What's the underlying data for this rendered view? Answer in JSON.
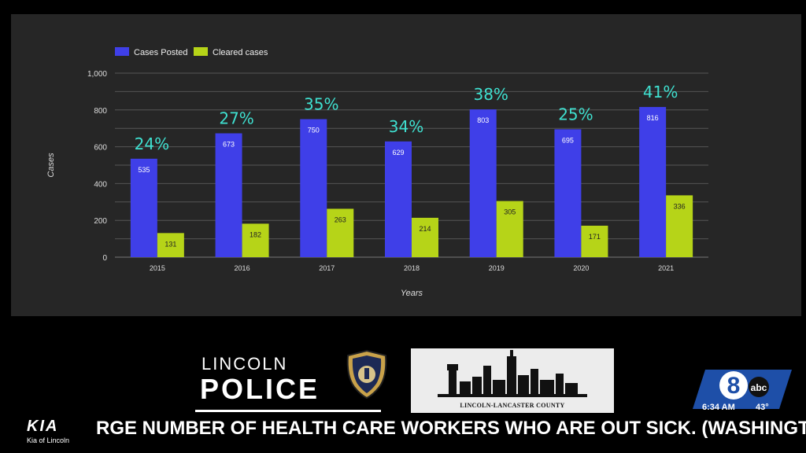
{
  "chart_data": {
    "type": "bar",
    "categories": [
      "2015",
      "2016",
      "2017",
      "2018",
      "2019",
      "2020",
      "2021"
    ],
    "series": [
      {
        "name": "Cases Posted",
        "color": "#3f3fe8",
        "values": [
          535,
          673,
          750,
          629,
          803,
          695,
          816
        ]
      },
      {
        "name": "Cleared cases",
        "color": "#b6d418",
        "values": [
          131,
          182,
          263,
          214,
          305,
          171,
          336
        ]
      }
    ],
    "percent_labels": [
      "24%",
      "27%",
      "35%",
      "34%",
      "38%",
      "25%",
      "41%"
    ],
    "percent_color": "#3fe0d0",
    "y_ticks": [
      "0",
      "200",
      "400",
      "600",
      "800",
      "1,000"
    ],
    "xlabel": "Years",
    "ylabel": "Cases",
    "ylim": [
      0,
      1000
    ],
    "grid": true,
    "legend_position": "top-left"
  },
  "logos": {
    "lpd_lincoln": "LINCOLN",
    "lpd_police": "POLICE",
    "county_label": "LINCOLN-LANCASTER COUNTY",
    "sponsor_logo": "KIA",
    "sponsor_name": "Kia of Lincoln"
  },
  "station": {
    "time": "6:34 AM",
    "temperature": "43°"
  },
  "ticker": {
    "text": "RGE NUMBER OF HEALTH CARE WORKERS WHO ARE OUT SICK. (WASHINGTON, D"
  }
}
